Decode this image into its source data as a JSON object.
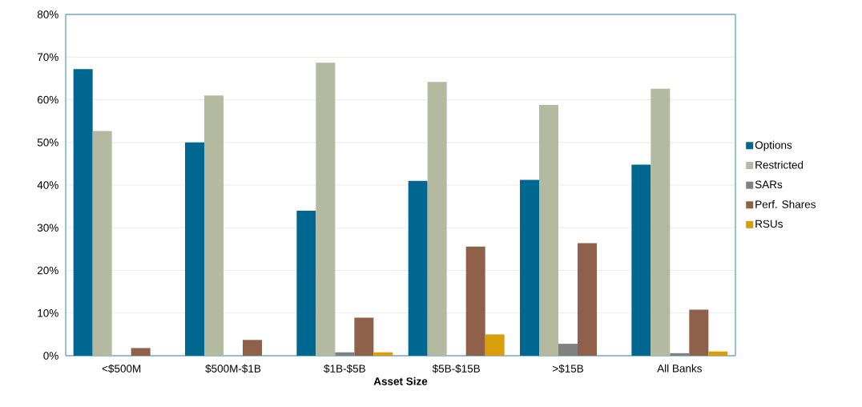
{
  "chart_data": {
    "type": "bar",
    "xlabel": "Asset Size",
    "categories": [
      "<$500M",
      "$500M-$1B",
      "$1B-$5B",
      "$5B-$15B",
      ">$15B",
      "All Banks"
    ],
    "series": [
      {
        "name": "Options",
        "color": "#006890",
        "values": [
          67.2,
          50.0,
          34.0,
          41.0,
          41.2,
          44.8
        ]
      },
      {
        "name": "Restricted",
        "color": "#b3baa0",
        "values": [
          52.7,
          61.0,
          68.7,
          64.2,
          58.8,
          62.6
        ]
      },
      {
        "name": "SARs",
        "color": "#808080",
        "values": [
          0,
          0,
          0.8,
          0,
          2.8,
          0.6
        ]
      },
      {
        "name": "Perf. Shares",
        "color": "#8f604a",
        "values": [
          1.8,
          3.7,
          8.9,
          25.6,
          26.4,
          10.8
        ]
      },
      {
        "name": "RSUs",
        "color": "#d99e0b",
        "values": [
          0,
          0,
          0.8,
          5.0,
          0,
          1.0
        ]
      }
    ],
    "ylim": [
      0,
      80
    ],
    "yticks": [
      {
        "value": 0,
        "label": "0%"
      },
      {
        "value": 10,
        "label": "10%"
      },
      {
        "value": 20,
        "label": "20%"
      },
      {
        "value": 30,
        "label": "30%"
      },
      {
        "value": 40,
        "label": "40%"
      },
      {
        "value": 50,
        "label": "50%"
      },
      {
        "value": 60,
        "label": "60%"
      },
      {
        "value": 70,
        "label": "70%"
      },
      {
        "value": 80,
        "label": "80%"
      }
    ],
    "grid": "y",
    "legend": "right"
  }
}
